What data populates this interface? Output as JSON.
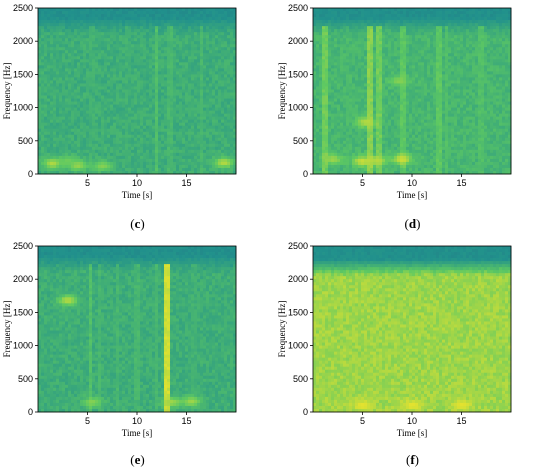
{
  "chart_data": [
    {
      "type": "heatmap",
      "caption": "(c)",
      "xlabel": "Time [s]",
      "ylabel": "Frequency [Hz]",
      "xlim": [
        0,
        20
      ],
      "ylim": [
        0,
        2500
      ],
      "xticks": [
        5,
        10,
        15
      ],
      "yticks": [
        0,
        500,
        1000,
        1500,
        2000,
        2500
      ],
      "colormap": [
        "#2b2f72",
        "#21918c",
        "#5ec962",
        "#fde725"
      ],
      "background_level": 0.5,
      "high_freq_cutoff": 2100,
      "streaks": [
        [
          12.0,
          0.6
        ],
        [
          13.3,
          0.55
        ],
        [
          16.5,
          0.55
        ],
        [
          5.5,
          0.5
        ],
        [
          9.0,
          0.5
        ]
      ],
      "bright_spots": [
        [
          1.5,
          160,
          0.85
        ],
        [
          4.0,
          130,
          0.8
        ],
        [
          6.5,
          120,
          0.75
        ],
        [
          18.8,
          170,
          0.85
        ],
        [
          3.0,
          200,
          0.7
        ]
      ]
    },
    {
      "type": "heatmap",
      "caption": "(d)",
      "xlabel": "Time [s]",
      "ylabel": "Frequency [Hz]",
      "xlim": [
        0,
        20
      ],
      "ylim": [
        0,
        2500
      ],
      "xticks": [
        5,
        10,
        15
      ],
      "yticks": [
        0,
        500,
        1000,
        1500,
        2000,
        2500
      ],
      "colormap": [
        "#2b2f72",
        "#21918c",
        "#5ec962",
        "#fde725"
      ],
      "background_level": 0.55,
      "high_freq_cutoff": 2100,
      "streaks": [
        [
          1.2,
          0.7
        ],
        [
          5.8,
          0.75
        ],
        [
          6.6,
          0.7
        ],
        [
          9.0,
          0.65
        ],
        [
          12.7,
          0.65
        ],
        [
          13.5,
          0.6
        ],
        [
          17.0,
          0.6
        ],
        [
          3.5,
          0.55
        ]
      ],
      "bright_spots": [
        [
          5.0,
          190,
          0.9
        ],
        [
          6.5,
          200,
          0.85
        ],
        [
          9.0,
          220,
          0.9
        ],
        [
          5.3,
          780,
          0.85
        ],
        [
          8.7,
          1400,
          0.75
        ],
        [
          2.0,
          220,
          0.8
        ]
      ]
    },
    {
      "type": "heatmap",
      "caption": "(e)",
      "xlabel": "Time [s]",
      "ylabel": "Frequency [Hz]",
      "xlim": [
        0,
        20
      ],
      "ylim": [
        0,
        2500
      ],
      "xticks": [
        5,
        10,
        15
      ],
      "yticks": [
        0,
        500,
        1000,
        1500,
        2000,
        2500
      ],
      "colormap": [
        "#2b2f72",
        "#21918c",
        "#5ec962",
        "#fde725"
      ],
      "background_level": 0.5,
      "high_freq_cutoff": 2100,
      "streaks": [
        [
          13.0,
          0.9
        ],
        [
          5.3,
          0.6
        ],
        [
          6.2,
          0.55
        ],
        [
          8.0,
          0.55
        ],
        [
          10.0,
          0.55
        ],
        [
          12.0,
          0.55
        ],
        [
          15.7,
          0.5
        ]
      ],
      "bright_spots": [
        [
          3.0,
          1680,
          0.85
        ],
        [
          13.5,
          150,
          0.8
        ],
        [
          15.5,
          160,
          0.8
        ],
        [
          5.5,
          150,
          0.75
        ]
      ]
    },
    {
      "type": "heatmap",
      "caption": "(f)",
      "xlabel": "Time [s]",
      "ylabel": "Frequency [Hz]",
      "xlim": [
        0,
        20
      ],
      "ylim": [
        0,
        2500
      ],
      "xticks": [
        5,
        10,
        15
      ],
      "yticks": [
        0,
        500,
        1000,
        1500,
        2000,
        2500
      ],
      "colormap": [
        "#2b2f72",
        "#21918c",
        "#5ec962",
        "#fde725"
      ],
      "background_level": 0.8,
      "high_freq_cutoff": 2050,
      "streaks": [],
      "bright_spots": [
        [
          5.0,
          100,
          0.95
        ],
        [
          10.0,
          100,
          0.95
        ],
        [
          15.0,
          100,
          0.95
        ]
      ]
    }
  ]
}
